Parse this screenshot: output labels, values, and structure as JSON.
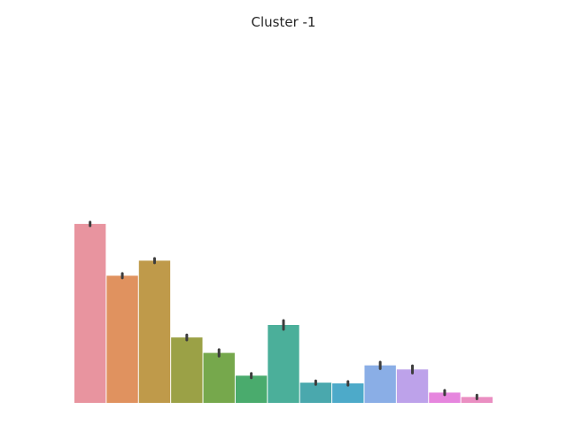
{
  "chart_data": {
    "type": "bar",
    "title": "Cluster -1",
    "xlabel": "",
    "ylabel": "",
    "ylim": [
      0,
      1
    ],
    "grid": false,
    "axes_visible": false,
    "values": [
      0.487,
      0.346,
      0.387,
      0.178,
      0.136,
      0.074,
      0.212,
      0.055,
      0.053,
      0.102,
      0.091,
      0.028,
      0.016
    ],
    "error": [
      0.005,
      0.006,
      0.006,
      0.007,
      0.009,
      0.006,
      0.012,
      0.005,
      0.005,
      0.009,
      0.01,
      0.006,
      0.005
    ],
    "colors": [
      "#e8949f",
      "#e0925f",
      "#bf9a4a",
      "#9ba146",
      "#76a84c",
      "#4aab6d",
      "#4baf9a",
      "#4aa8ad",
      "#4daac9",
      "#8aaee6",
      "#bda2ea",
      "#e686de",
      "#ea8fc2"
    ]
  }
}
